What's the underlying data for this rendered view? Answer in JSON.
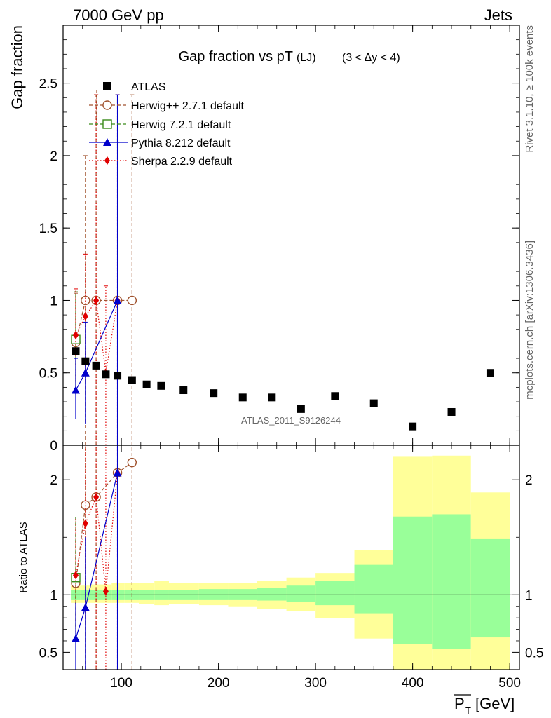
{
  "header": {
    "left": "7000 GeV pp",
    "right": "Jets"
  },
  "side_labels": {
    "rivet": "Rivet 3.1.10, ≥ 100k events",
    "mcplots": "mcplots.cern.ch [arXiv:1306.3436]"
  },
  "chart_data": [
    {
      "type": "scatter",
      "role": "main",
      "title": "Gap fraction vs pT",
      "title_suffix": "(LJ)",
      "title_range": "(3 < Δy < 4)",
      "ylabel": "Gap fraction",
      "xlabel": "P",
      "xlabel_sub": "T",
      "xlabel_unit": "[GeV]",
      "watermark": "ATLAS_2011_S9126244",
      "xlim": [
        40,
        510
      ],
      "ylim": [
        0,
        2.9
      ],
      "yticks": [
        0,
        0.5,
        1,
        1.5,
        2,
        2.5
      ],
      "ytick_labels": [
        "0",
        "0.5",
        "1",
        "1.5",
        "2",
        "2.5"
      ],
      "legend": [
        {
          "label": "ATLAS",
          "series": "atlas"
        },
        {
          "label": "Herwig++ 2.7.1 default",
          "series": "herwigpp"
        },
        {
          "label": "Herwig 7.2.1 default",
          "series": "herwig7"
        },
        {
          "label": "Pythia 8.212 default",
          "series": "pythia"
        },
        {
          "label": "Sherpa 2.2.9 default",
          "series": "sherpa"
        }
      ],
      "series": [
        {
          "id": "atlas",
          "name": "ATLAS",
          "marker": "square",
          "color": "#000000",
          "line": "none",
          "x": [
            53,
            63,
            74,
            84,
            96,
            111,
            126,
            141,
            164,
            195,
            225,
            255,
            285,
            320,
            360,
            400,
            440,
            480
          ],
          "y": [
            0.65,
            0.58,
            0.55,
            0.49,
            0.48,
            0.45,
            0.42,
            0.41,
            0.38,
            0.36,
            0.33,
            0.33,
            0.25,
            0.34,
            0.29,
            0.13,
            0.23,
            0.5
          ],
          "yerr": [
            0.02,
            0.02,
            0.02,
            0.02,
            0.02,
            0.02,
            0.02,
            0.02,
            0.02,
            0.02,
            0.02,
            0.02,
            0.02,
            0.02,
            0.02,
            0.02,
            0.02,
            0.02
          ]
        },
        {
          "id": "herwigpp",
          "name": "Herwig++ 2.7.1 default",
          "marker": "open-circle",
          "color": "#a0522d",
          "line": "dashed",
          "x": [
            53,
            63,
            74,
            96,
            111
          ],
          "y": [
            0.71,
            1.0,
            1.0,
            1.0,
            1.0
          ],
          "ylow": [
            0.35,
            0.0,
            0.0,
            0.0,
            0.0
          ],
          "yhigh": [
            1.05,
            2.0,
            2.42,
            2.42,
            2.42
          ]
        },
        {
          "id": "herwig7",
          "name": "Herwig 7.2.1 default",
          "marker": "open-square",
          "color": "#3a8a1a",
          "line": "dashed",
          "x": [
            53
          ],
          "y": [
            0.73
          ],
          "ylow": [
            0.4
          ],
          "yhigh": [
            1.06
          ]
        },
        {
          "id": "pythia",
          "name": "Pythia 8.212 default",
          "marker": "triangle",
          "color": "#0000cc",
          "line": "solid",
          "x": [
            53,
            63,
            96
          ],
          "y": [
            0.38,
            0.5,
            1.0
          ],
          "ylow": [
            0.18,
            0.15,
            0.0
          ],
          "yhigh": [
            0.6,
            0.85,
            2.42
          ]
        },
        {
          "id": "sherpa",
          "name": "Sherpa 2.2.9 default",
          "marker": "diamond",
          "color": "#e00000",
          "line": "dotted",
          "x": [
            53,
            63,
            74,
            84,
            96
          ],
          "y": [
            0.76,
            0.89,
            1.0,
            0.5,
            1.0
          ],
          "ylow": [
            0.44,
            0.45,
            0.0,
            0.0,
            0.0
          ],
          "yhigh": [
            1.08,
            1.32,
            2.42,
            1.1,
            2.42
          ]
        }
      ]
    },
    {
      "type": "scatter",
      "role": "ratio",
      "ylabel": "Ratio to ATLAS",
      "xlim": [
        40,
        510
      ],
      "ylim": [
        0.35,
        2.3
      ],
      "yticks": [
        0.5,
        1,
        2
      ],
      "ytick_labels": [
        "0.5",
        "1",
        "2"
      ],
      "xticks": [
        100,
        200,
        300,
        400,
        500
      ],
      "xtick_labels": [
        "100",
        "200",
        "300",
        "400",
        "500"
      ],
      "reference_line": 1,
      "bands": {
        "edges": [
          48,
          58,
          68,
          79,
          90,
          103,
          118,
          134,
          149,
          180,
          210,
          240,
          270,
          300,
          340,
          380,
          420,
          460,
          500
        ],
        "inner_low": [
          0.96,
          0.96,
          0.96,
          0.96,
          0.96,
          0.96,
          0.96,
          0.96,
          0.96,
          0.96,
          0.96,
          0.95,
          0.94,
          0.91,
          0.84,
          0.57,
          0.53,
          0.63
        ],
        "inner_high": [
          1.04,
          1.04,
          1.04,
          1.04,
          1.04,
          1.04,
          1.04,
          1.04,
          1.04,
          1.05,
          1.05,
          1.06,
          1.08,
          1.12,
          1.26,
          1.68,
          1.7,
          1.49
        ],
        "outer_low": [
          0.93,
          0.93,
          0.93,
          0.93,
          0.93,
          0.93,
          0.92,
          0.91,
          0.92,
          0.91,
          0.9,
          0.88,
          0.86,
          0.8,
          0.62,
          0.35,
          0.35,
          0.35
        ],
        "outer_high": [
          1.08,
          1.08,
          1.09,
          1.09,
          1.1,
          1.1,
          1.1,
          1.12,
          1.1,
          1.1,
          1.1,
          1.12,
          1.15,
          1.19,
          1.39,
          2.2,
          2.21,
          1.89
        ],
        "inner_color": "#99ff99",
        "outer_color": "#ffff99"
      },
      "series": [
        {
          "id": "herwigpp",
          "color": "#a0522d",
          "marker": "open-circle",
          "line": "dashed",
          "x": [
            53,
            63,
            74,
            96,
            111
          ],
          "y": [
            1.1,
            1.78,
            1.85,
            2.06,
            2.15
          ],
          "ylow": [
            0.72,
            0.0,
            0.0,
            0.0,
            0.0
          ],
          "yhigh": [
            1.68,
            2.3,
            2.3,
            2.3,
            2.3
          ]
        },
        {
          "id": "herwig7",
          "color": "#3a8a1a",
          "marker": "open-square",
          "line": "dashed",
          "x": [
            53
          ],
          "y": [
            1.15
          ],
          "ylow": [
            0.72
          ],
          "yhigh": [
            1.68
          ]
        },
        {
          "id": "pythia",
          "color": "#0000cc",
          "marker": "triangle",
          "line": "solid",
          "x": [
            53,
            63,
            96
          ],
          "y": [
            0.62,
            0.89,
            2.06
          ],
          "ylow": [
            0.0,
            0.0,
            0.0
          ],
          "yhigh": [
            0.93,
            1.5,
            2.3
          ]
        },
        {
          "id": "sherpa",
          "color": "#e00000",
          "marker": "diamond",
          "line": "dotted",
          "x": [
            53,
            63,
            74,
            84,
            96
          ],
          "y": [
            1.17,
            1.62,
            1.85,
            1.03,
            2.06
          ],
          "ylow": [
            0.68,
            0.77,
            0.0,
            0.0,
            0.0
          ],
          "yhigh": [
            1.66,
            2.3,
            2.3,
            2.3,
            2.3
          ]
        }
      ]
    }
  ]
}
